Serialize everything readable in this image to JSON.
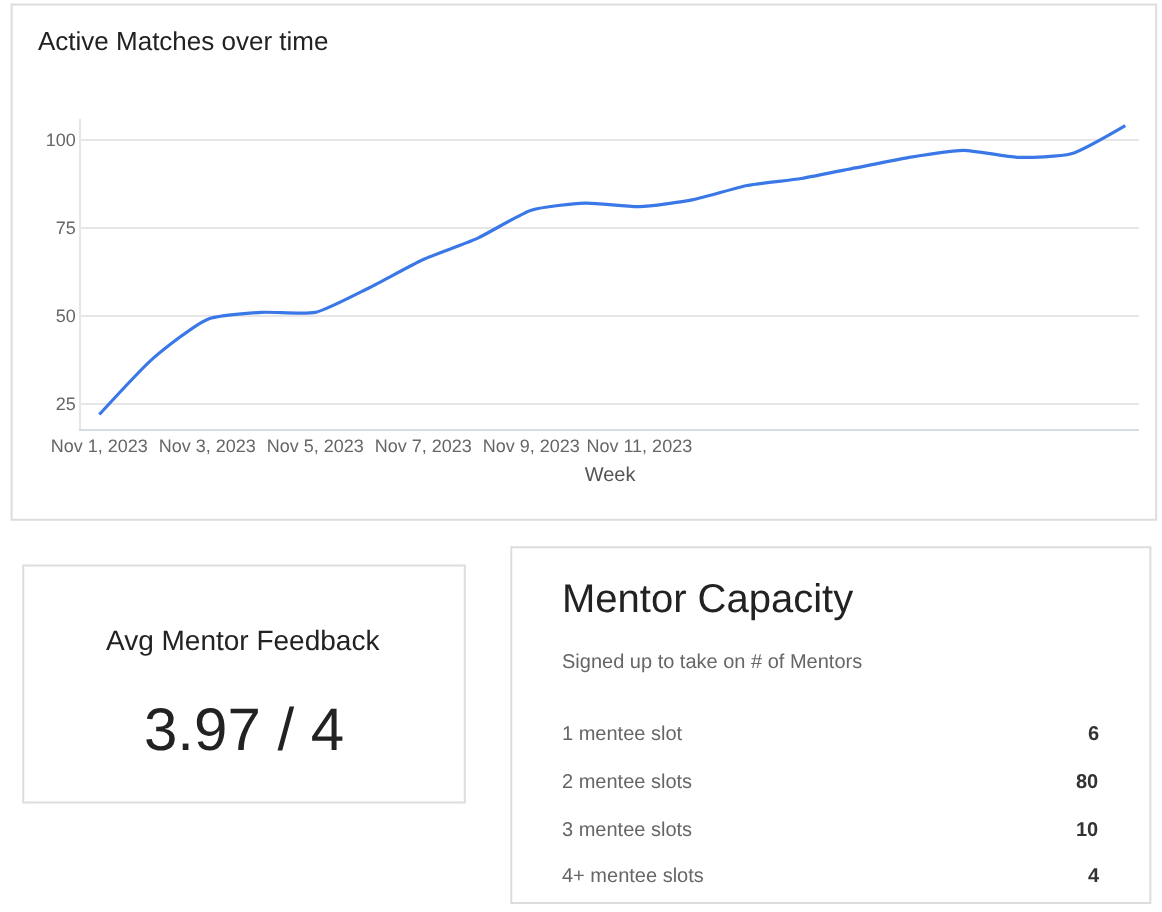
{
  "chart_data": [
    {
      "type": "line",
      "title": "Active Matches over time",
      "xlabel": "Week",
      "x": [
        "2023-11-01",
        "2023-11-02",
        "2023-11-03",
        "2023-11-04",
        "2023-11-05",
        "2023-11-06",
        "2023-11-07",
        "2023-11-08",
        "2023-11-09",
        "2023-11-10",
        "2023-11-11",
        "2023-11-12",
        "2023-11-13",
        "2023-11-14",
        "2023-11-15",
        "2023-11-16",
        "2023-11-17",
        "2023-11-18",
        "2023-11-19",
        "2023-11-20"
      ],
      "series": [
        {
          "color": "#3b78e7",
          "values": [
            22,
            38,
            49,
            51,
            51,
            58,
            66,
            72,
            80,
            82,
            81,
            83,
            87,
            89,
            92,
            95,
            97,
            95,
            96,
            104
          ]
        }
      ],
      "xlim": [
        "2023-10-31T16:00",
        "2023-11-20T06:00"
      ],
      "xticks": [
        {
          "value": "2023-11-01",
          "label": "Nov 1, 2023"
        },
        {
          "value": "2023-11-03",
          "label": "Nov 3, 2023"
        },
        {
          "value": "2023-11-05",
          "label": "Nov 5, 2023"
        },
        {
          "value": "2023-11-07",
          "label": "Nov 7, 2023"
        },
        {
          "value": "2023-11-09",
          "label": "Nov 9, 2023"
        },
        {
          "value": "2023-11-11",
          "label": "Nov 11, 2023"
        }
      ],
      "ylim": [
        18,
        106
      ],
      "yticks": [
        25,
        50,
        75,
        100
      ],
      "grid": "y",
      "line_style": "solid"
    },
    {
      "type": "other",
      "title": "Avg Mentor Feedback",
      "annotations": [
        "3.97 / 4"
      ]
    },
    {
      "type": "other",
      "title": "Mentor Capacity",
      "subtitle": "Signed up to take on # of Mentors",
      "categories": [
        "1 mentee slot",
        "2 mentee slots",
        "3 mentee slots",
        "4+ mentee slots"
      ],
      "values": [
        6,
        80,
        10,
        4
      ],
      "data_labels": true
    }
  ]
}
